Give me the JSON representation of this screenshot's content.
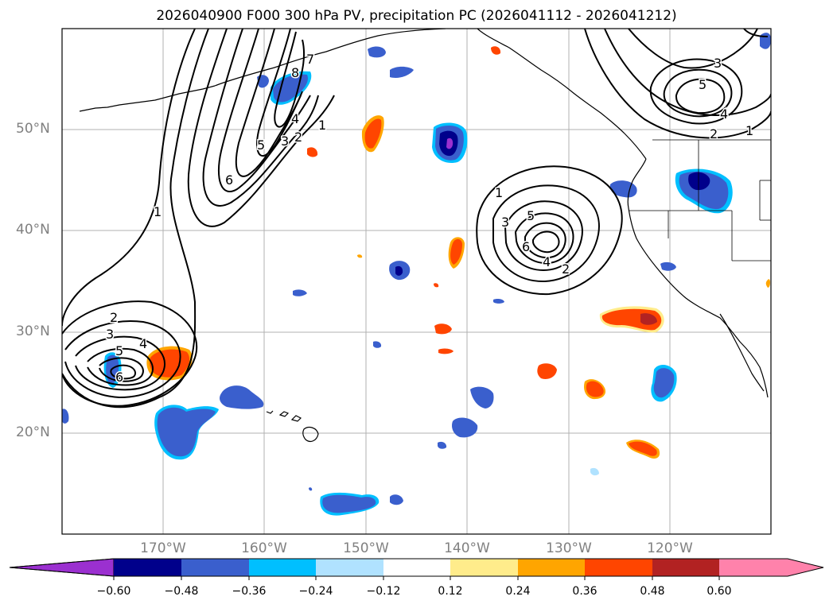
{
  "title": "2026040900 F000 300 hPa PV, precipitation PC (2026041112 - 2026041212)",
  "map": {
    "lat_labels": [
      "50°N",
      "40°N",
      "30°N",
      "20°N"
    ],
    "lon_labels": [
      "170°W",
      "160°W",
      "150°W",
      "140°W",
      "130°W",
      "120°W"
    ]
  },
  "pv_contour_labels": [
    "1",
    "2",
    "3",
    "4",
    "5",
    "6",
    "7",
    "8",
    "1",
    "2",
    "3",
    "4",
    "5",
    "6",
    "1",
    "2",
    "3",
    "4",
    "5",
    "6",
    "1",
    "2",
    "3",
    "4",
    "5"
  ],
  "colorbar": {
    "tick_labels": [
      "−0.60",
      "−0.48",
      "−0.36",
      "−0.24",
      "−0.12",
      "0.12",
      "0.24",
      "0.36",
      "0.48",
      "0.60"
    ],
    "colors": [
      "#9b30d0",
      "#00008b",
      "#3a5fcd",
      "#00bfff",
      "#b0e2ff",
      "#ffffff",
      "#ffec8b",
      "#ffa500",
      "#ff4500",
      "#b22222",
      "#ff82ab"
    ]
  }
}
